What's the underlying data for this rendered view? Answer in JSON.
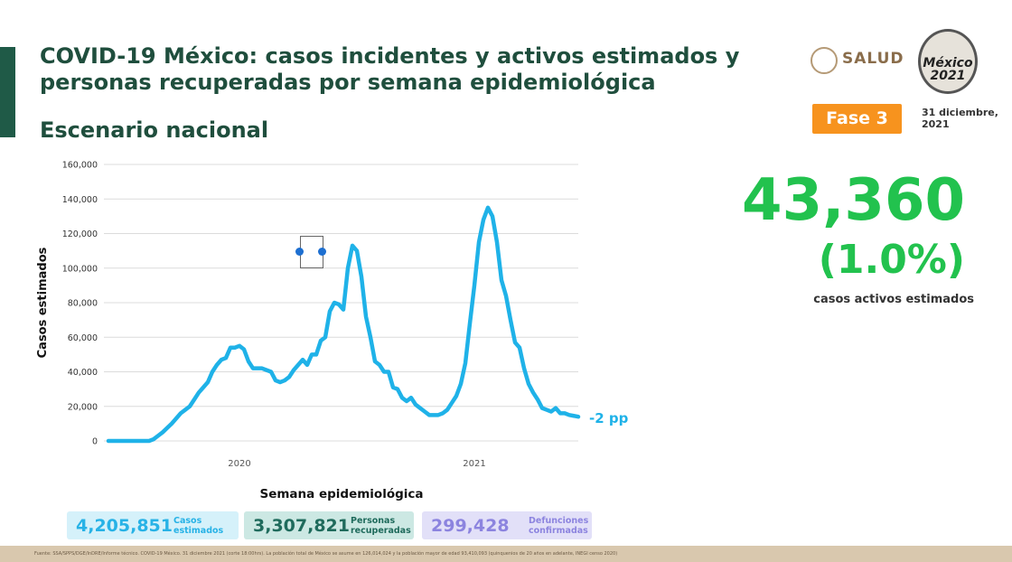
{
  "header": {
    "title_line1": "COVID-19 México: casos incidentes y activos estimados y",
    "title_line2": "personas recuperadas por semana epidemiológica",
    "subtitle": "Escenario nacional",
    "ministry": "SALUD",
    "logo_text": "México 2021",
    "phase": "Fase 3",
    "date_line1": "31 diciembre,",
    "date_line2": "2021"
  },
  "highlight": {
    "value": "43,360",
    "percent": "(1.0%)",
    "caption": "casos activos estimados"
  },
  "summary": [
    {
      "value": "4,205,851",
      "label_line1": "Casos",
      "label_line2": "estimados"
    },
    {
      "value": "3,307,821",
      "label_line1": "Personas",
      "label_line2": "recuperadas"
    },
    {
      "value": "299,428",
      "label_line1": "Defunciones",
      "label_line2": "confirmadas"
    }
  ],
  "footer": "Fuente: SSA/SPPS/DGE/InDRE/Informe técnico. COVID-19 México. 31 diciembre 2021 (corte 18:00hrs). La población total de México se asume en 126,014,024 y la población mayor de edad 93,410,093 (quinquenios de 20 años en adelante, INEGI censo 2020)",
  "chart_data": {
    "type": "line",
    "x_label": "Semana epidemiológica",
    "y_label": "Casos estimados",
    "annotation": "-2 pp",
    "color": "#1fb2e8",
    "grid": true,
    "ylim": [
      0,
      160000
    ],
    "yticks": [
      0,
      {
        "value": 20000,
        "label": "20,000"
      },
      {
        "value": 40000,
        "label": "40,000"
      },
      {
        "value": 60000,
        "label": "60,000"
      },
      {
        "value": 80000,
        "label": "80,000"
      },
      {
        "value": 100000,
        "label": "100,000"
      },
      {
        "value": 120000,
        "label": "120,000"
      },
      {
        "value": 140000,
        "label": "140,000"
      },
      {
        "value": 160000,
        "label": "160,000"
      }
    ],
    "categories": [
      null,
      null,
      null,
      null,
      null,
      null,
      null,
      null,
      null,
      null,
      null,
      null,
      null,
      null,
      null,
      null,
      null,
      null,
      null,
      null,
      null,
      null,
      null,
      null,
      null,
      null,
      null,
      null,
      null,
      "2020",
      null,
      null,
      null,
      null,
      null,
      null,
      null,
      null,
      null,
      null,
      null,
      null,
      null,
      null,
      null,
      null,
      null,
      null,
      null,
      null,
      null,
      null,
      null,
      null,
      null,
      null,
      null,
      null,
      null,
      null,
      null,
      null,
      null,
      null,
      null,
      null,
      null,
      null,
      null,
      null,
      null,
      null,
      null,
      null,
      null,
      null,
      null,
      null,
      null,
      null,
      null,
      "2021",
      null,
      null,
      null,
      null,
      null,
      null,
      null,
      null,
      null,
      null,
      null,
      null,
      null,
      null,
      null,
      null,
      null,
      null,
      null,
      null,
      null,
      null,
      null
    ],
    "values": [
      0,
      0,
      0,
      0,
      0,
      0,
      0,
      0,
      0,
      0,
      1000,
      3000,
      5000,
      7500,
      10000,
      13000,
      16000,
      18000,
      20000,
      24000,
      28000,
      31000,
      34000,
      40000,
      44000,
      47000,
      48000,
      54000,
      54000,
      55000,
      53000,
      46000,
      42000,
      42000,
      42000,
      41000,
      40000,
      35000,
      34000,
      35000,
      37000,
      41000,
      44000,
      47000,
      44000,
      50000,
      50000,
      58000,
      60000,
      75000,
      80000,
      79000,
      76000,
      100000,
      113000,
      110000,
      95000,
      72000,
      60000,
      46000,
      44000,
      40000,
      40000,
      31000,
      30000,
      25000,
      23000,
      25000,
      21000,
      19000,
      17000,
      15000,
      15000,
      15000,
      16000,
      18000,
      22000,
      26000,
      33000,
      45000,
      68000,
      90000,
      115000,
      128000,
      135000,
      130000,
      115000,
      93000,
      84000,
      70000,
      57000,
      54000,
      42000,
      33000,
      28000,
      24000,
      19000,
      18000,
      17000,
      19000,
      16000,
      16000,
      15000,
      14500,
      14000
    ]
  }
}
